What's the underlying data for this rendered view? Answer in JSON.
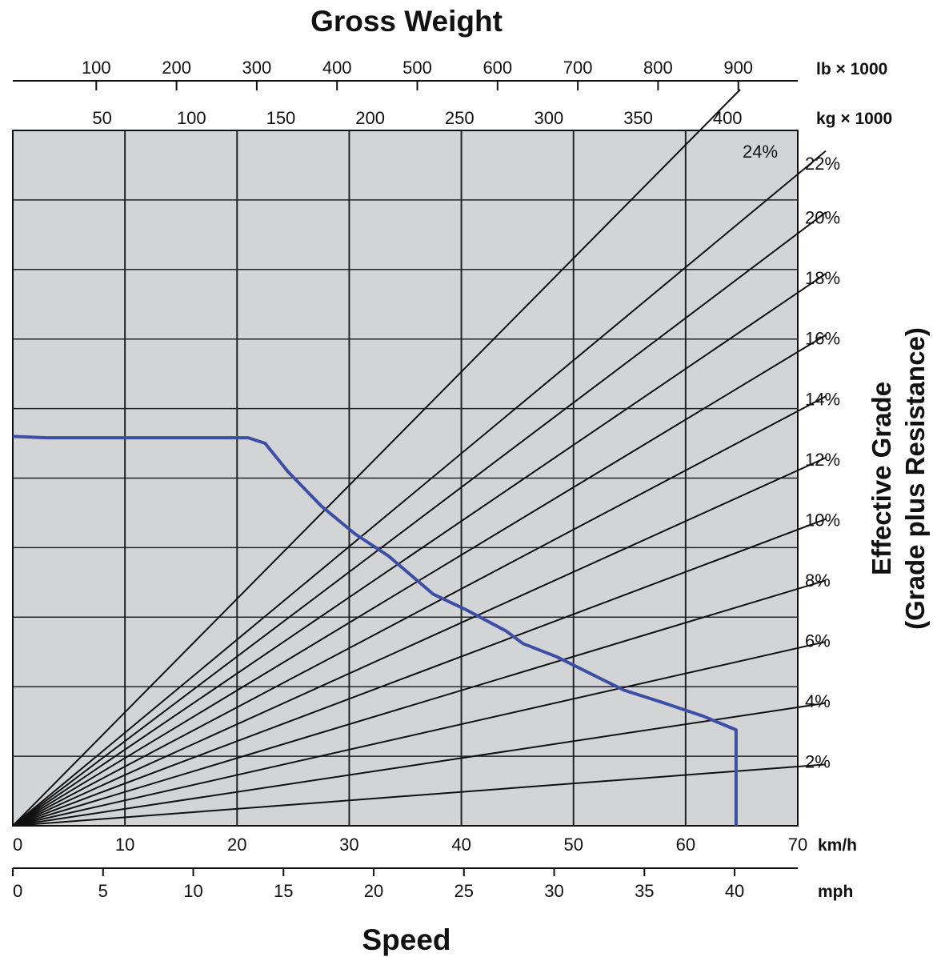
{
  "chart_data": {
    "type": "line",
    "title": "Gross Weight",
    "xlabel": "Speed",
    "ylabel_line1": "Effective Grade",
    "ylabel_line2": "(Grade plus Resistance)",
    "x_axis_kmh": {
      "unit": "km/h",
      "ticks": [
        "0",
        "10",
        "20",
        "30",
        "40",
        "50",
        "60",
        "70"
      ],
      "range": [
        0,
        70
      ]
    },
    "x_axis_mph": {
      "unit": "mph",
      "ticks": [
        "0",
        "5",
        "10",
        "15",
        "20",
        "25",
        "30",
        "35",
        "40"
      ],
      "range": [
        0,
        43.5
      ]
    },
    "top_axis_lb": {
      "unit": "lb × 1000",
      "ticks": [
        "100",
        "200",
        "300",
        "400",
        "500",
        "600",
        "700",
        "800",
        "900"
      ]
    },
    "top_axis_kg": {
      "unit": "kg × 1000",
      "ticks": [
        "50",
        "100",
        "150",
        "200",
        "250",
        "300",
        "350",
        "400"
      ]
    },
    "rimpull_scale_max": 10,
    "grid": true,
    "grade_lines": [
      {
        "label": "2%",
        "grade": 2
      },
      {
        "label": "4%",
        "grade": 4
      },
      {
        "label": "6%",
        "grade": 6
      },
      {
        "label": "8%",
        "grade": 8
      },
      {
        "label": "10%",
        "grade": 10
      },
      {
        "label": "12%",
        "grade": 12
      },
      {
        "label": "14%",
        "grade": 14
      },
      {
        "label": "16%",
        "grade": 16
      },
      {
        "label": "18%",
        "grade": 18
      },
      {
        "label": "20%",
        "grade": 20
      },
      {
        "label": "22%",
        "grade": 22
      },
      {
        "label": "24%",
        "grade": 24
      }
    ],
    "series": [
      {
        "color": "#3c4fa5",
        "x_kmh": [
          0,
          3,
          21,
          22.5,
          24.5,
          27.5,
          30.5,
          33.5,
          37.5,
          40.5,
          44,
          45.5,
          48.5,
          52,
          54.5,
          58,
          61.5,
          64.5,
          64.5
        ],
        "rimpull": [
          5.6,
          5.58,
          5.58,
          5.5,
          5.1,
          4.6,
          4.2,
          3.88,
          3.33,
          3.1,
          2.8,
          2.62,
          2.43,
          2.15,
          1.95,
          1.77,
          1.58,
          1.38,
          0
        ]
      }
    ]
  }
}
